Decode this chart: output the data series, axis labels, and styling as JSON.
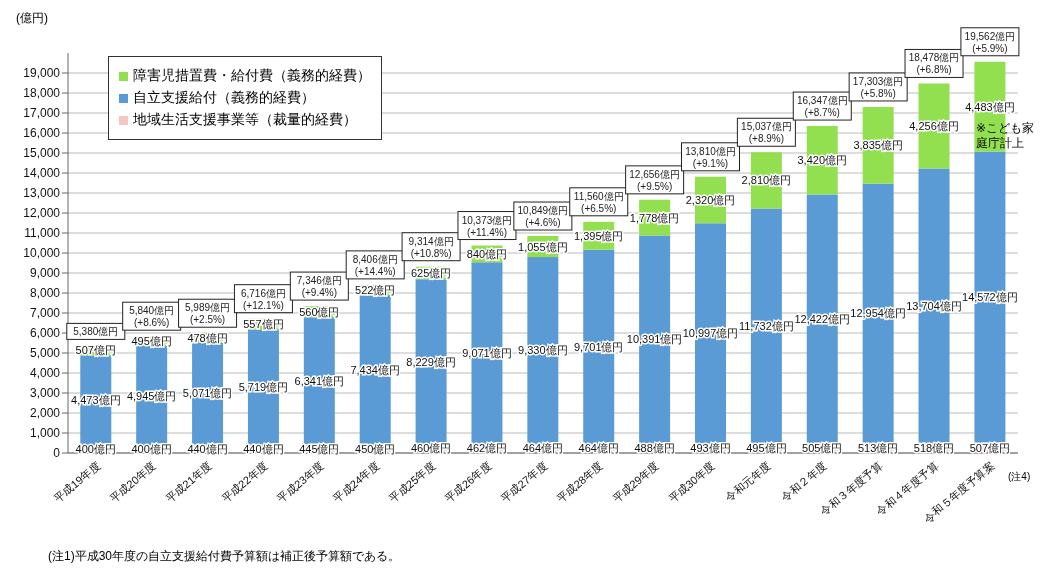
{
  "chart_data": {
    "type": "bar",
    "stacked": true,
    "ylabel": "(億円)",
    "categories": [
      "平成19年度",
      "平成20年度",
      "平成21年度",
      "平成22年度",
      "平成23年度",
      "平成24年度",
      "平成25年度",
      "平成26年度",
      "平成27年度",
      "平成28年度",
      "平成29年度",
      "平成30年度",
      "令和元年度",
      "令和２年度",
      "令和３年度予算",
      "令和４年度予算",
      "令和５年度予算案"
    ],
    "series": [
      {
        "name": "地域生活支援事業等（裁量的経費）",
        "color": "#f4c7c3",
        "values": [
          400,
          400,
          440,
          440,
          445,
          450,
          460,
          462,
          464,
          464,
          488,
          493,
          495,
          505,
          513,
          518,
          507
        ],
        "value_labels": [
          "400億円",
          "400億円",
          "440億円",
          "440億円",
          "445億円",
          "450億円",
          "460億円",
          "462億円",
          "464億円",
          "464億円",
          "488億円",
          "493億円",
          "495億円",
          "505億円",
          "513億円",
          "518億円",
          "507億円"
        ]
      },
      {
        "name": "自立支援給付（義務的経費）",
        "color": "#5b9bd5",
        "values": [
          4473,
          4945,
          5071,
          5719,
          6341,
          7434,
          8229,
          9071,
          9330,
          9701,
          10391,
          10997,
          11732,
          12422,
          12954,
          13704,
          14572
        ],
        "value_labels": [
          "4,473億円",
          "4,945億円",
          "5,071億円",
          "5,719億円",
          "6,341億円",
          "7,434億円",
          "8,229億円",
          "9,071億円",
          "9,330億円",
          "9,701億円",
          "10,391億円",
          "10,997億円",
          "11,732億円",
          "12,422億円",
          "12,954億円",
          "13,704億円",
          "14,572億円"
        ]
      },
      {
        "name": "障害児措置費・給付費（義務的経費）",
        "color": "#92e04f",
        "values": [
          507,
          495,
          478,
          557,
          560,
          522,
          625,
          840,
          1055,
          1395,
          1778,
          2320,
          2810,
          3420,
          3835,
          4256,
          4483
        ],
        "value_labels": [
          "507億円",
          "495億円",
          "478億円",
          "557億円",
          "560億円",
          "522億円",
          "625億円",
          "840億円",
          "1,055億円",
          "1,395億円",
          "1,778億円",
          "2,320億円",
          "2,810億円",
          "3,420億円",
          "3,835億円",
          "4,256億円",
          "4,483億円"
        ]
      }
    ],
    "totals": [
      "5,380億円",
      "5,840億円\n(+8.6%)",
      "5,989億円\n(+2.5%)",
      "6,716億円\n(+12.1%)",
      "7,346億円\n(+9.4%)",
      "8,406億円\n(+14.4%)",
      "9,314億円\n(+10.8%)",
      "10,373億円\n(+11.4%)",
      "10,849億円\n(+4.6%)",
      "11,560億円\n(+6.5%)",
      "12,656億円\n(+9.5%)",
      "13,810億円\n(+9.1%)",
      "15,037億円\n(+8.9%)",
      "16,347億円\n(+8.7%)",
      "17,303億円\n(+5.8%)",
      "18,478億円\n(+6.8%)",
      "19,562億円\n(+5.9%)"
    ],
    "ylim": [
      0,
      20000
    ],
    "yticks": [
      0,
      {
        "value": 1000,
        "label": "1,000"
      },
      {
        "value": 2000,
        "label": "2,000"
      },
      {
        "value": 3000,
        "label": "3,000"
      },
      {
        "value": 4000,
        "label": "4,000"
      },
      {
        "value": 5000,
        "label": "5,000"
      },
      {
        "value": 6000,
        "label": "6,000"
      },
      {
        "value": 7000,
        "label": "7,000"
      },
      {
        "value": 8000,
        "label": "8,000"
      },
      {
        "value": 9000,
        "label": "9,000"
      },
      {
        "value": 10000,
        "label": "10,000"
      },
      {
        "value": 11000,
        "label": "11,000"
      },
      {
        "value": 12000,
        "label": "12,000"
      },
      {
        "value": 13000,
        "label": "13,000"
      },
      {
        "value": 14000,
        "label": "14,000"
      },
      {
        "value": 15000,
        "label": "15,000"
      },
      {
        "value": 16000,
        "label": "16,000"
      },
      {
        "value": 17000,
        "label": "17,000"
      },
      {
        "value": 18000,
        "label": "18,000"
      },
      {
        "value": 19000,
        "label": "19,000"
      }
    ],
    "grid": "y",
    "legend": "top left",
    "annotations": [
      "※こども家庭庁計上",
      "(注4)",
      "(注1)平成30年度の自立支援給付費予算額は補正後予算額である。"
    ]
  }
}
